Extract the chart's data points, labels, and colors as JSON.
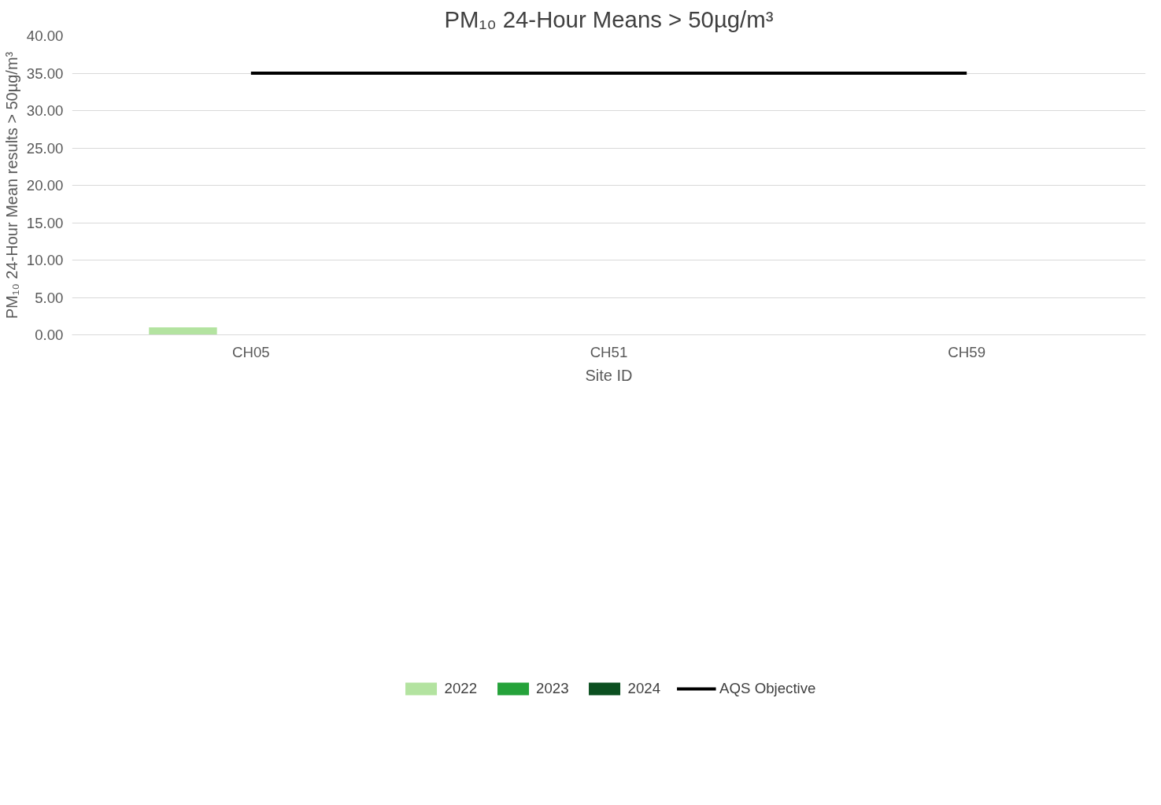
{
  "chart_data": {
    "type": "bar",
    "title": "PM₁₀ 24-Hour Means > 50µg/m³",
    "xlabel": "Site ID",
    "ylabel": "PM₁₀ 24-Hour Mean results > 50µg/m³",
    "categories": [
      "CH05",
      "CH51",
      "CH59"
    ],
    "series": [
      {
        "name": "2022",
        "color": "#b3e3a0",
        "values": [
          1,
          0,
          0
        ]
      },
      {
        "name": "2023",
        "color": "#25a23a",
        "values": [
          0,
          0,
          0
        ]
      },
      {
        "name": "2024",
        "color": "#0b4f20",
        "values": [
          0,
          0,
          0
        ]
      },
      {
        "name": "AQS Objective",
        "type": "line",
        "color": "#000000",
        "values": [
          35,
          35,
          35
        ]
      }
    ],
    "ylim": [
      0,
      40
    ],
    "yticks": [
      {
        "value": 0,
        "label": "0.00"
      },
      {
        "value": 5,
        "label": "5.00"
      },
      {
        "value": 10,
        "label": "10.00"
      },
      {
        "value": 15,
        "label": "15.00"
      },
      {
        "value": 20,
        "label": "20.00"
      },
      {
        "value": 25,
        "label": "25.00"
      },
      {
        "value": 30,
        "label": "30.00"
      },
      {
        "value": 35,
        "label": "35.00"
      },
      {
        "value": 40,
        "label": "40.00"
      }
    ],
    "grid": "y",
    "legend": "bottom"
  }
}
